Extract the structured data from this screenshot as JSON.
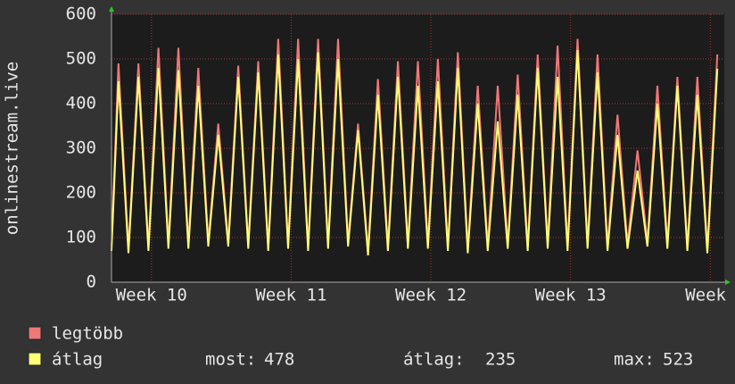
{
  "chart_data": {
    "type": "line",
    "ylabel": "onlinestream.live",
    "x": [
      0,
      0.35,
      0.85,
      1.35,
      1.85,
      2.35,
      2.85,
      3.35,
      3.85,
      4.35,
      4.85,
      5.35,
      5.85,
      6.35,
      6.85,
      7.35,
      7.85,
      8.35,
      8.85,
      9.35,
      9.85,
      10.35,
      10.85,
      11.35,
      11.85,
      12.35,
      12.85,
      13.35,
      13.85,
      14.35,
      14.85,
      15.35,
      15.85,
      16.35,
      16.85,
      17.35,
      17.85,
      18.35,
      18.85,
      19.35,
      19.85,
      20.35,
      20.85,
      21.35,
      21.85,
      22.35,
      22.85,
      23.35,
      23.85,
      24.35,
      24.85,
      25.35,
      25.85,
      26.35,
      26.85,
      27.35,
      27.85,
      28.35,
      28.85,
      29.35,
      29.85,
      30.35
    ],
    "series": [
      {
        "name": "legtöbb",
        "color": "#ee7777",
        "values": [
          80,
          490,
          75,
          490,
          80,
          525,
          85,
          525,
          85,
          480,
          90,
          355,
          90,
          485,
          85,
          495,
          80,
          545,
          85,
          545,
          80,
          545,
          85,
          545,
          90,
          355,
          70,
          455,
          80,
          495,
          85,
          495,
          85,
          500,
          80,
          515,
          75,
          440,
          80,
          440,
          85,
          465,
          80,
          510,
          85,
          530,
          80,
          545,
          85,
          510,
          80,
          375,
          85,
          295,
          90,
          440,
          85,
          460,
          80,
          460,
          75,
          510
        ]
      },
      {
        "name": "átlag",
        "color": "#ffff77",
        "values": [
          70,
          450,
          65,
          460,
          70,
          480,
          75,
          475,
          75,
          440,
          80,
          330,
          80,
          460,
          75,
          470,
          70,
          510,
          75,
          500,
          70,
          515,
          75,
          500,
          80,
          340,
          60,
          420,
          70,
          460,
          75,
          440,
          75,
          450,
          70,
          480,
          65,
          400,
          70,
          360,
          75,
          420,
          70,
          480,
          75,
          460,
          70,
          520,
          75,
          470,
          70,
          330,
          75,
          250,
          80,
          400,
          75,
          440,
          70,
          420,
          65,
          478
        ]
      }
    ],
    "stats": [
      {
        "label": "most:",
        "value": 478
      },
      {
        "label": "átlag:",
        "value": 235
      },
      {
        "label": "max:",
        "value": 523
      }
    ],
    "xlim": [
      0,
      30.7
    ],
    "xticks": [
      {
        "value": 2,
        "label": "Week 10"
      },
      {
        "value": 9,
        "label": "Week 11"
      },
      {
        "value": 16,
        "label": "Week 12"
      },
      {
        "value": 23,
        "label": "Week 13"
      },
      {
        "value": 30,
        "label": "Week"
      }
    ],
    "ylim": [
      0,
      600
    ],
    "yticks": [
      0,
      100,
      200,
      300,
      400,
      500,
      600
    ],
    "grid": true
  }
}
